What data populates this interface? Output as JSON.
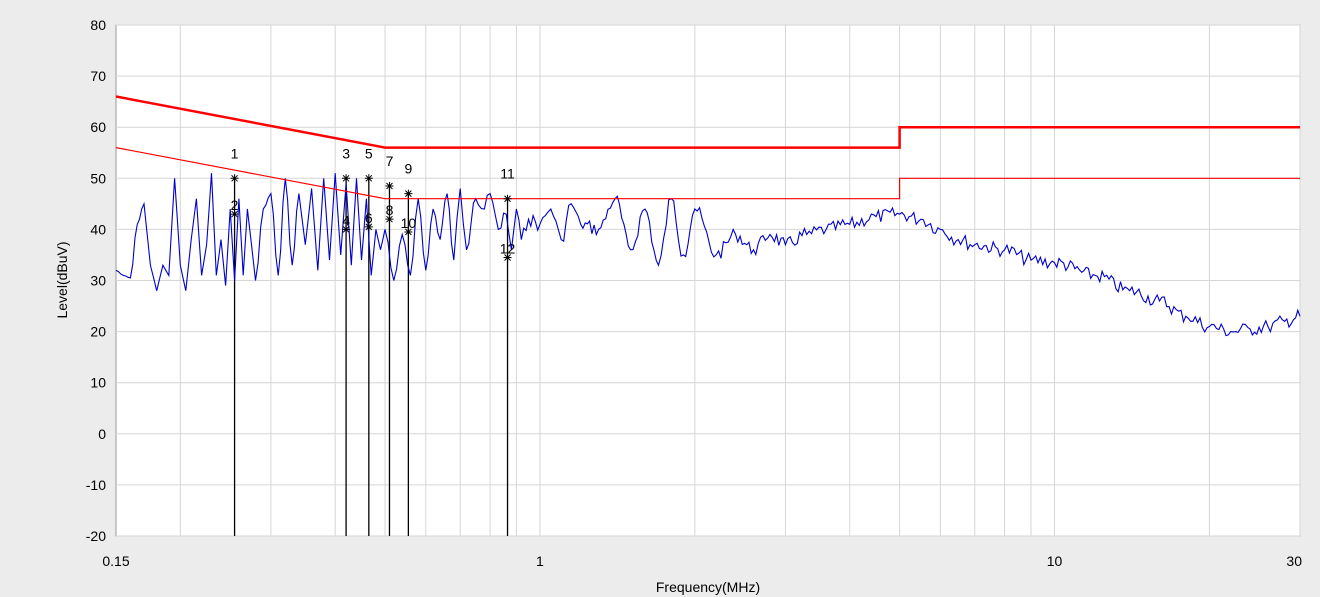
{
  "chart_data": {
    "type": "line",
    "xlabel": "Frequency(MHz)",
    "ylabel": "Level(dBuV)",
    "xscale": "log",
    "xlim": [
      0.15,
      30
    ],
    "ylim": [
      -20,
      80
    ],
    "grid": true,
    "x_ticks": [
      {
        "value": 0.15,
        "label": "0.15"
      },
      {
        "value": 1,
        "label": "1"
      },
      {
        "value": 10,
        "label": "10"
      },
      {
        "value": 30,
        "label": "30"
      }
    ],
    "y_ticks": [
      {
        "value": 80,
        "label": "80"
      },
      {
        "value": 70,
        "label": "70"
      },
      {
        "value": 60,
        "label": "60"
      },
      {
        "value": 50,
        "label": "50"
      },
      {
        "value": 40,
        "label": "40"
      },
      {
        "value": 30,
        "label": "30"
      },
      {
        "value": 20,
        "label": "20"
      },
      {
        "value": 10,
        "label": "10"
      },
      {
        "value": 0,
        "label": "0"
      },
      {
        "value": -10,
        "label": "-10"
      },
      {
        "value": -20,
        "label": "-20"
      }
    ],
    "limit_lines": [
      {
        "color": "#ff0000",
        "width": 2.5,
        "x": [
          0.15,
          0.5,
          0.5,
          5,
          5,
          30
        ],
        "y": [
          66,
          56,
          56,
          56,
          60,
          60
        ]
      },
      {
        "color": "#ff0000",
        "width": 1.2,
        "x": [
          0.15,
          0.5,
          0.5,
          5,
          5,
          30
        ],
        "y": [
          56,
          46,
          46,
          46,
          50,
          50
        ]
      }
    ],
    "series": [
      {
        "color": "#0000cc",
        "x": [
          0.15,
          0.155,
          0.16,
          0.165,
          0.17,
          0.175,
          0.18,
          0.185,
          0.19,
          0.195,
          0.2,
          0.205,
          0.21,
          0.215,
          0.22,
          0.225,
          0.23,
          0.235,
          0.24,
          0.245,
          0.25,
          0.255,
          0.26,
          0.265,
          0.27,
          0.275,
          0.28,
          0.29,
          0.3,
          0.31,
          0.32,
          0.33,
          0.34,
          0.35,
          0.36,
          0.37,
          0.38,
          0.39,
          0.4,
          0.41,
          0.42,
          0.43,
          0.44,
          0.45,
          0.46,
          0.47,
          0.48,
          0.49,
          0.5,
          0.52,
          0.54,
          0.56,
          0.58,
          0.6,
          0.62,
          0.64,
          0.66,
          0.68,
          0.7,
          0.72,
          0.75,
          0.78,
          0.8,
          0.83,
          0.86,
          0.88,
          0.9,
          0.92,
          0.95,
          1.0,
          1.05,
          1.1,
          1.15,
          1.2,
          1.3,
          1.4,
          1.5,
          1.6,
          1.7,
          1.8,
          1.9,
          2.0,
          2.2,
          2.4,
          2.6,
          2.8,
          3.0,
          3.3,
          3.6,
          4.0,
          4.5,
          5.0,
          5.5,
          6.0,
          6.5,
          7.0,
          8.0,
          9.0,
          10,
          12,
          14,
          16,
          18,
          20,
          22,
          24,
          26,
          28,
          30
        ],
        "y": [
          32,
          31,
          30.5,
          41,
          45,
          33,
          28,
          33,
          31,
          50,
          33,
          28,
          38,
          46,
          31,
          37,
          51,
          31,
          38,
          29,
          44,
          30,
          46,
          31,
          44,
          37,
          30,
          44,
          47,
          31,
          50,
          33,
          47,
          37,
          48,
          32,
          50,
          34,
          51,
          35,
          49,
          33,
          50,
          34,
          46,
          31,
          40,
          36,
          40,
          30,
          39,
          31,
          46,
          32,
          44,
          38,
          47,
          34,
          48,
          36,
          46,
          44,
          47,
          40,
          43,
          36,
          44,
          38,
          42,
          41,
          44,
          38,
          45,
          41,
          40,
          46,
          36,
          44,
          33,
          46,
          35,
          44,
          35,
          39,
          36,
          39,
          37,
          39,
          40,
          41,
          42.5,
          43,
          42,
          40,
          38,
          37,
          36,
          34,
          33.5,
          31,
          28,
          26,
          23,
          21,
          20,
          20.5,
          21,
          22,
          23
        ]
      }
    ],
    "markers": [
      {
        "label": "1",
        "x": 0.255,
        "y": 50
      },
      {
        "label": "2",
        "x": 0.255,
        "y": 43
      },
      {
        "label": "3",
        "x": 0.42,
        "y": 50
      },
      {
        "label": "4",
        "x": 0.42,
        "y": 40
      },
      {
        "label": "5",
        "x": 0.465,
        "y": 50
      },
      {
        "label": "6",
        "x": 0.465,
        "y": 40.5
      },
      {
        "label": "7",
        "x": 0.51,
        "y": 48.5
      },
      {
        "label": "8",
        "x": 0.51,
        "y": 42
      },
      {
        "label": "9",
        "x": 0.555,
        "y": 47
      },
      {
        "label": "10",
        "x": 0.555,
        "y": 39.5
      },
      {
        "label": "11",
        "x": 0.865,
        "y": 46
      },
      {
        "label": "12",
        "x": 0.865,
        "y": 34.5
      }
    ]
  }
}
